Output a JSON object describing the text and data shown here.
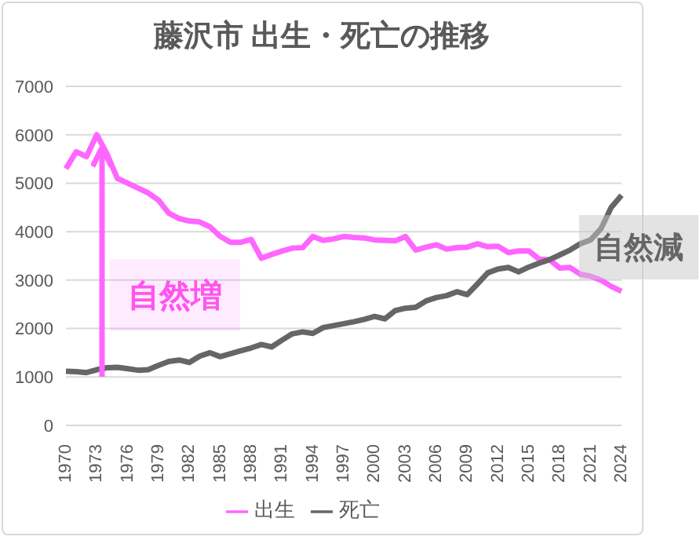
{
  "chart_data": {
    "type": "line",
    "title": "藤沢市 出生・死亡の推移",
    "categories": [
      "1970",
      null,
      null,
      "1973",
      null,
      null,
      "1976",
      null,
      null,
      "1979",
      null,
      null,
      "1982",
      null,
      null,
      "1985",
      null,
      null,
      "1988",
      null,
      null,
      "1991",
      null,
      null,
      "1994",
      null,
      null,
      "1997",
      null,
      null,
      "2000",
      null,
      null,
      "2003",
      null,
      null,
      "2006",
      null,
      null,
      "2009",
      null,
      null,
      "2012",
      null,
      null,
      "2015",
      null,
      null,
      "2018",
      null,
      null,
      "2021",
      null,
      null,
      "2024"
    ],
    "series": [
      {
        "name": "出生",
        "color": "#ff66ff",
        "values": [
          5300,
          5650,
          5550,
          6000,
          5600,
          5100,
          5000,
          4900,
          4800,
          4650,
          4380,
          4270,
          4220,
          4200,
          4100,
          3900,
          3780,
          3780,
          3840,
          3450,
          3530,
          3600,
          3660,
          3670,
          3900,
          3820,
          3850,
          3900,
          3880,
          3870,
          3830,
          3820,
          3810,
          3900,
          3620,
          3680,
          3730,
          3640,
          3670,
          3680,
          3750,
          3690,
          3700,
          3570,
          3600,
          3600,
          3430,
          3420,
          3250,
          3260,
          3120,
          3080,
          3000,
          2870,
          2770
        ]
      },
      {
        "name": "死亡",
        "color": "#666666",
        "values": [
          1120,
          1110,
          1090,
          1150,
          1190,
          1200,
          1170,
          1140,
          1150,
          1240,
          1320,
          1350,
          1300,
          1430,
          1500,
          1420,
          1480,
          1540,
          1600,
          1670,
          1620,
          1760,
          1890,
          1930,
          1900,
          2020,
          2060,
          2100,
          2140,
          2190,
          2250,
          2200,
          2370,
          2420,
          2440,
          2570,
          2640,
          2680,
          2760,
          2700,
          2920,
          3150,
          3230,
          3260,
          3170,
          3270,
          3350,
          3420,
          3520,
          3620,
          3750,
          3830,
          4060,
          4500,
          4750
        ]
      }
    ],
    "ylim": [
      0,
      7000
    ],
    "yticks": [
      0,
      1000,
      2000,
      3000,
      4000,
      5000,
      6000,
      7000
    ],
    "grid": "y",
    "legend": "bottom",
    "marker": "none",
    "line_style": "solid",
    "annotations": [
      "自然増",
      "自然減"
    ]
  }
}
